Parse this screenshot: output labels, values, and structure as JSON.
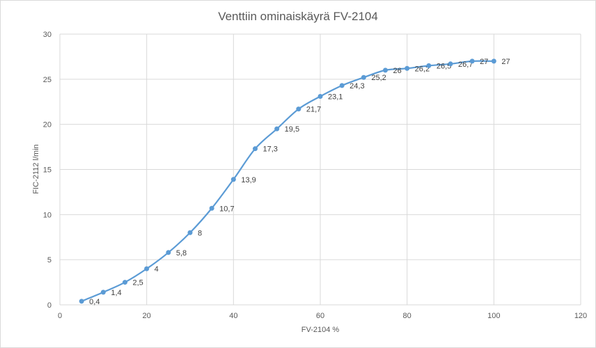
{
  "chart_data": {
    "type": "scatter",
    "title": "Venttiin ominaiskäyrä FV-2104",
    "xlabel": "FV-2104 %",
    "ylabel": "FIC-2112 l/min",
    "xlim": [
      0,
      120
    ],
    "ylim": [
      0,
      30
    ],
    "xticks": [
      0,
      20,
      40,
      60,
      80,
      100,
      120
    ],
    "yticks": [
      0,
      5,
      10,
      15,
      20,
      25,
      30
    ],
    "grid": true,
    "legend": "none",
    "line_style": "smooth lines with markers",
    "color": "#5b9bd5",
    "series": [
      {
        "x": [
          5,
          10,
          15,
          20,
          25,
          30,
          35,
          40,
          45,
          50,
          55,
          60,
          65,
          70,
          75,
          80,
          85,
          90,
          95,
          100
        ],
        "y": [
          0.4,
          1.4,
          2.5,
          4,
          5.8,
          8,
          10.7,
          13.9,
          17.3,
          19.5,
          21.7,
          23.1,
          24.3,
          25.2,
          26,
          26.2,
          26.5,
          26.7,
          27,
          27
        ],
        "labels": [
          "0,4",
          "1,4",
          "2,5",
          "4",
          "5,8",
          "8",
          "10,7",
          "13,9",
          "17,3",
          "19,5",
          "21,7",
          "23,1",
          "24,3",
          "25,2",
          "26",
          "26,2",
          "26,5",
          "26,7",
          "27",
          "27"
        ]
      }
    ]
  }
}
